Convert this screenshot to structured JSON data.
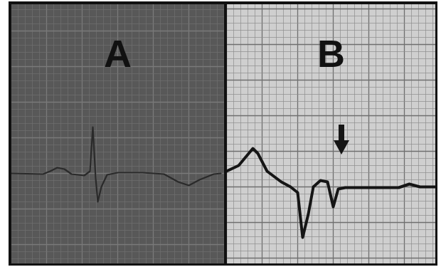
{
  "chart_data": [
    {
      "type": "line",
      "title": "A",
      "x": [
        0,
        4.5,
        5.5,
        6.5,
        7.5,
        8.5,
        10.3,
        11.1,
        11.5,
        11.9,
        12.2,
        12.7,
        13.5,
        15,
        18.5,
        21.5,
        23.5,
        25,
        26.5,
        28.5,
        29.5
      ],
      "values": [
        0,
        -0.1,
        0.3,
        0.8,
        0.6,
        -0.1,
        -0.3,
        0.3,
        6.5,
        -0.7,
        -4.0,
        -1.9,
        -0.2,
        0.1,
        0.1,
        -0.1,
        -1.2,
        -1.7,
        -0.9,
        -0.1,
        0
      ],
      "xlim": [
        0,
        30
      ],
      "ylim": [
        -12.7,
        23.8
      ],
      "grid": true,
      "tick_labels": false,
      "color": "#2a2a2a"
    },
    {
      "type": "line",
      "title": "B",
      "x": [
        0,
        1.7,
        3.7,
        4.4,
        5.7,
        7.7,
        9.0,
        10.0,
        10.7,
        11.5,
        12.2,
        13.2,
        14.2,
        15.0,
        15.7,
        16.7,
        24.2,
        25.7,
        27.2,
        29.4
      ],
      "values": [
        2.2,
        3.0,
        5.4,
        4.7,
        2.2,
        0.7,
        0,
        -0.8,
        -7.1,
        -3.8,
        0,
        0.9,
        0.7,
        -2.8,
        -0.3,
        -0.1,
        -0.1,
        0.4,
        0,
        0
      ],
      "xlim": [
        0,
        29.4
      ],
      "ylim": [
        -10.8,
        25.7
      ],
      "grid": true,
      "tick_labels": false,
      "color": "#151515"
    }
  ]
}
